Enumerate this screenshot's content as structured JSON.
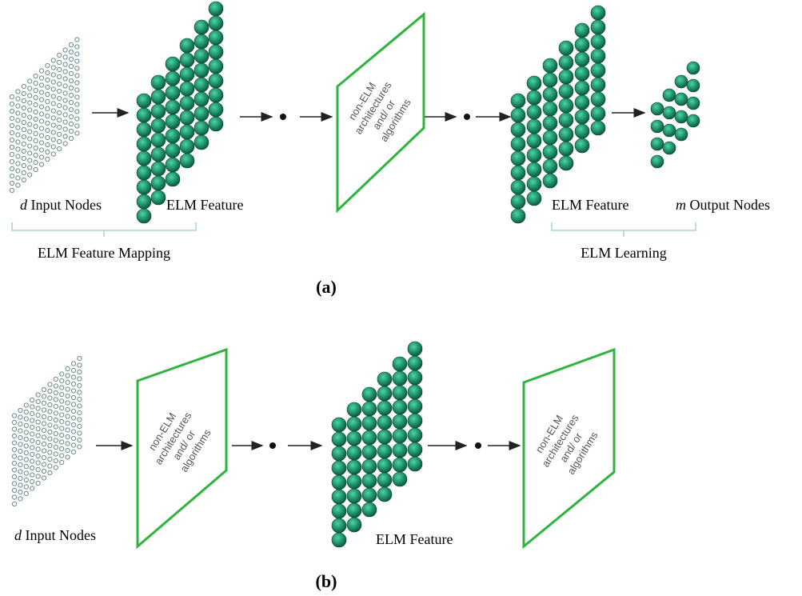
{
  "panel_a": {
    "input_label": {
      "var": "d",
      "text": "Input Nodes"
    },
    "feature_label": "ELM Feature",
    "block": [
      "non-ELM",
      "architectures",
      "and/ or",
      "algorithms"
    ],
    "feature_label_2": "ELM Feature",
    "output_label": {
      "var": "m",
      "text": "Output Nodes"
    },
    "mapping_label": "ELM Feature Mapping",
    "learning_label": "ELM Learning",
    "caption": "(a)"
  },
  "panel_b": {
    "input_label": {
      "var": "d",
      "text": "Input Nodes"
    },
    "block": [
      "non-ELM",
      "architectures",
      "and/ or",
      "algorithms"
    ],
    "feature_label": "ELM Feature",
    "block_2": [
      "non-ELM",
      "architectures",
      "and/ or",
      "algorithms"
    ],
    "caption": "(b)"
  }
}
